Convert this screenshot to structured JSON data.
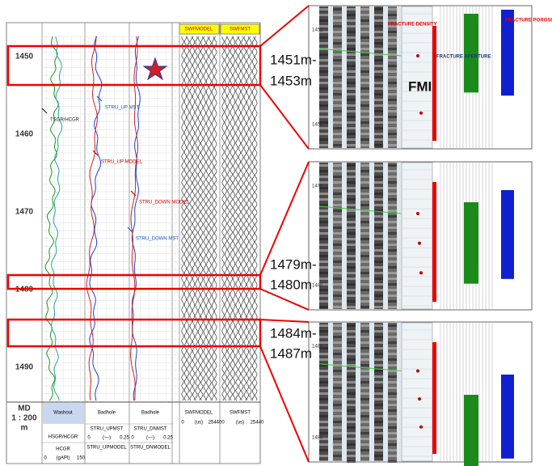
{
  "header": {
    "swf_model": "SWFMODEL",
    "swf_mst": "SWFMST"
  },
  "depth_labels": [
    "1450",
    "1460",
    "1470",
    "1480",
    "1490"
  ],
  "annotations": [
    "TSGR/HCGR",
    "STRU_UP MST",
    "STRU_UP MODEL",
    "STRU_DOWN MODEL",
    "STRU_DOWN MST"
  ],
  "intervals": [
    {
      "top": "1451m-",
      "bottom": "1453m"
    },
    {
      "top": "1479m-",
      "bottom": "1480m"
    },
    {
      "top": "1484m-",
      "bottom": "1487m"
    }
  ],
  "image_panels": [
    {
      "depth_labels": [
        "1452",
        "1454"
      ]
    },
    {
      "depth_labels": [
        "1478",
        "1480"
      ]
    },
    {
      "depth_labels": [
        "1484",
        "1486"
      ]
    }
  ],
  "image_annotations": [
    "FRACTURE DENSITY",
    "FRACTURE APERTURE",
    "FRACTURE POROSITY",
    "FMI"
  ],
  "footer": {
    "scale": [
      "MD",
      "1 : 200",
      "m"
    ],
    "track_titles": [
      "Washout",
      "Badhole",
      "Badhole",
      "SWFMODEL",
      "SWFMST"
    ],
    "curves": [
      "HSGR/HCGR",
      "HCGR",
      "STRU_UPMST",
      "STRU_UPMODEL",
      "STRU_DNMST",
      "STRU_DNMODEL"
    ],
    "ranges": [
      "0",
      "(gAPI)",
      "150",
      "0",
      "(—)",
      "0.25",
      "0",
      "(—)",
      "0.25",
      "0",
      "(us)",
      "25440",
      "0",
      "(us)",
      "25440"
    ]
  }
}
